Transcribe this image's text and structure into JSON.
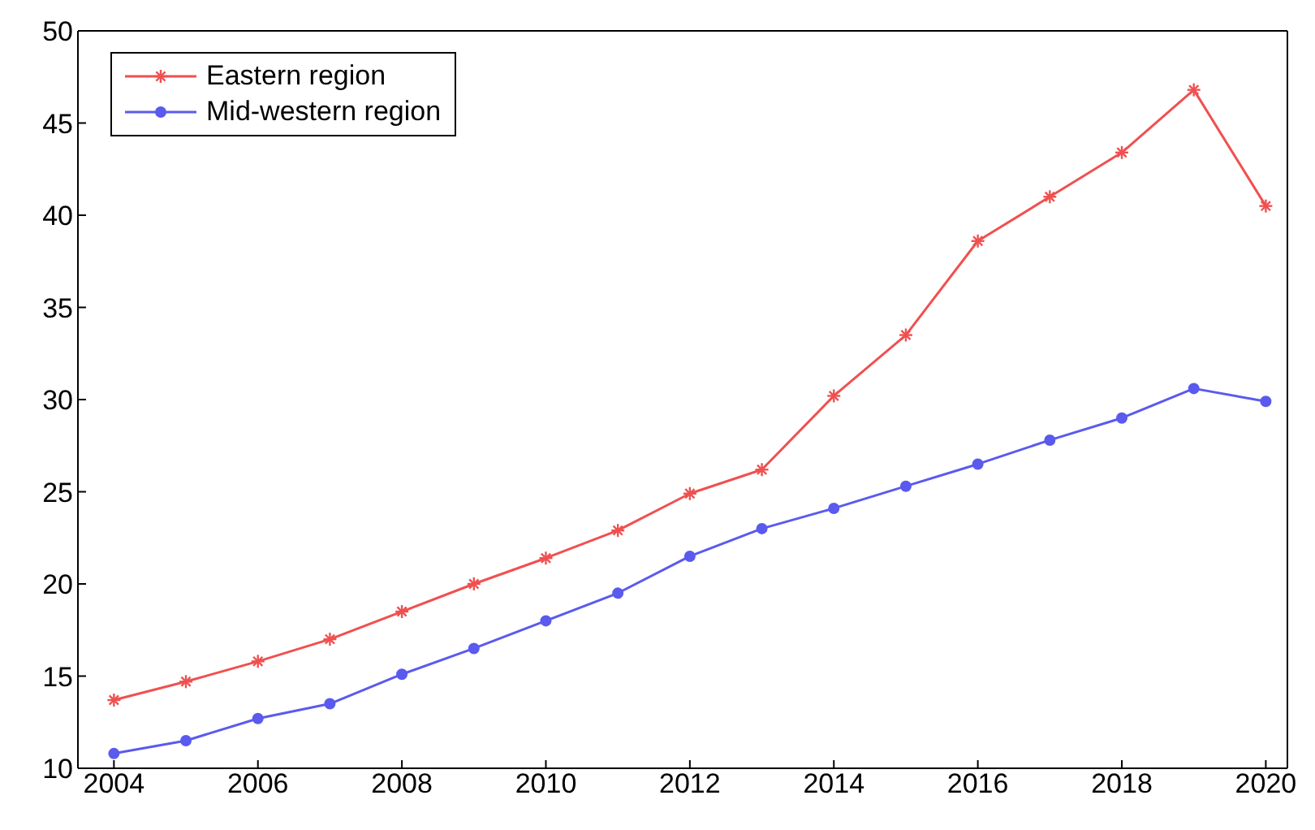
{
  "chart_data": {
    "type": "line",
    "x": [
      2004,
      2005,
      2006,
      2007,
      2008,
      2009,
      2010,
      2011,
      2012,
      2013,
      2014,
      2015,
      2016,
      2017,
      2018,
      2019,
      2020
    ],
    "series": [
      {
        "name": "Eastern region",
        "color": "#f05050",
        "marker": "cross",
        "values": [
          13.7,
          14.7,
          15.8,
          17.0,
          18.5,
          20.0,
          21.4,
          22.9,
          24.9,
          26.2,
          30.2,
          33.5,
          38.6,
          41.0,
          43.4,
          46.8,
          40.5
        ]
      },
      {
        "name": "Mid-western region",
        "color": "#5a5aee",
        "marker": "circle",
        "values": [
          10.8,
          11.5,
          12.7,
          13.5,
          15.1,
          16.5,
          18.0,
          19.5,
          21.5,
          23.0,
          24.1,
          25.3,
          26.5,
          27.8,
          29.0,
          30.6,
          29.9
        ]
      }
    ],
    "xlim": [
      2003.5,
      2020.3
    ],
    "xticks": [
      2004,
      2006,
      2008,
      2010,
      2012,
      2014,
      2016,
      2018,
      2020
    ],
    "ylim": [
      10,
      50
    ],
    "yticks": [
      10,
      15,
      20,
      25,
      30,
      35,
      40,
      45,
      50
    ],
    "grid": false,
    "legend": "top left"
  }
}
